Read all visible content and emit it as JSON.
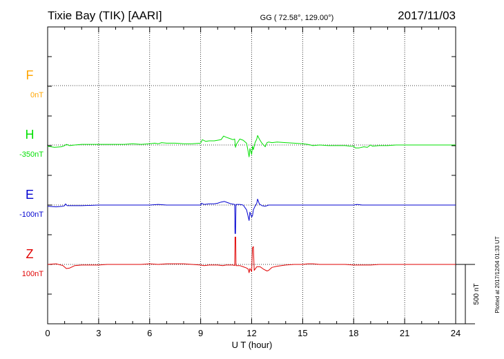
{
  "header": {
    "station": "Tixie Bay (TIK)  [AARI]",
    "coords": "GG ( 72.58°, 129.00°)",
    "date": "2017/11/03"
  },
  "plotted_note": "Plotted at 2017/12/04 01:33 UT",
  "chart_data": {
    "type": "line",
    "xlabel": "U T (hour)",
    "xlim": [
      0,
      24
    ],
    "xticks": [
      "0",
      "3",
      "6",
      "9",
      "12",
      "15",
      "18",
      "21",
      "24"
    ],
    "scale_bar_label": "500 nT",
    "series": [
      {
        "name": "F",
        "baseline": "0nT",
        "color": "#ffa500",
        "points": []
      },
      {
        "name": "H",
        "baseline": "-350nT",
        "color": "#00e000",
        "points": [
          [
            0,
            -10
          ],
          [
            0.4,
            -20
          ],
          [
            0.8,
            -15
          ],
          [
            1.0,
            -5
          ],
          [
            1.1,
            5
          ],
          [
            1.3,
            -5
          ],
          [
            1.6,
            0
          ],
          [
            2.0,
            5
          ],
          [
            2.5,
            5
          ],
          [
            3.0,
            5
          ],
          [
            3.5,
            5
          ],
          [
            4.0,
            5
          ],
          [
            4.5,
            5
          ],
          [
            5.0,
            10
          ],
          [
            5.5,
            5
          ],
          [
            6.0,
            10
          ],
          [
            6.3,
            15
          ],
          [
            6.5,
            10
          ],
          [
            6.7,
            20
          ],
          [
            7.0,
            15
          ],
          [
            7.5,
            15
          ],
          [
            8.0,
            10
          ],
          [
            8.5,
            10
          ],
          [
            9.0,
            15
          ],
          [
            9.1,
            45
          ],
          [
            9.3,
            30
          ],
          [
            9.5,
            35
          ],
          [
            9.8,
            35
          ],
          [
            10.0,
            40
          ],
          [
            10.2,
            45
          ],
          [
            10.35,
            75
          ],
          [
            10.5,
            65
          ],
          [
            10.7,
            55
          ],
          [
            10.9,
            45
          ],
          [
            11.0,
            50
          ],
          [
            11.05,
            -20
          ],
          [
            11.1,
            5
          ],
          [
            11.3,
            50
          ],
          [
            11.5,
            40
          ],
          [
            11.7,
            15
          ],
          [
            11.8,
            -60
          ],
          [
            11.85,
            -100
          ],
          [
            11.9,
            -30
          ],
          [
            12.0,
            -80
          ],
          [
            12.05,
            -10
          ],
          [
            12.1,
            -40
          ],
          [
            12.2,
            20
          ],
          [
            12.3,
            50
          ],
          [
            12.35,
            80
          ],
          [
            12.45,
            50
          ],
          [
            12.6,
            15
          ],
          [
            12.8,
            -15
          ],
          [
            12.9,
            20
          ],
          [
            13.0,
            25
          ],
          [
            13.2,
            20
          ],
          [
            13.5,
            25
          ],
          [
            14.0,
            20
          ],
          [
            14.5,
            15
          ],
          [
            15.0,
            10
          ],
          [
            15.3,
            5
          ],
          [
            15.6,
            -5
          ],
          [
            16.0,
            0
          ],
          [
            16.5,
            -5
          ],
          [
            17.0,
            -5
          ],
          [
            17.5,
            -5
          ],
          [
            17.8,
            -10
          ],
          [
            18.0,
            -10
          ],
          [
            18.1,
            -25
          ],
          [
            18.3,
            -25
          ],
          [
            18.6,
            -15
          ],
          [
            18.8,
            -20
          ],
          [
            19.0,
            0
          ],
          [
            19.1,
            -10
          ],
          [
            19.5,
            -5
          ],
          [
            20.0,
            -5
          ],
          [
            20.5,
            0
          ],
          [
            21.0,
            0
          ],
          [
            21.5,
            0
          ],
          [
            22.0,
            0
          ],
          [
            22.5,
            0
          ],
          [
            23.0,
            0
          ],
          [
            23.5,
            0
          ],
          [
            24.0,
            0
          ]
        ]
      },
      {
        "name": "E",
        "baseline": "-100nT",
        "color": "#0000d0",
        "points": [
          [
            0,
            -10
          ],
          [
            0.5,
            -15
          ],
          [
            0.9,
            -10
          ],
          [
            1.0,
            -5
          ],
          [
            1.05,
            10
          ],
          [
            1.15,
            -5
          ],
          [
            1.5,
            -5
          ],
          [
            2.0,
            -5
          ],
          [
            3.0,
            0
          ],
          [
            4.0,
            0
          ],
          [
            5.0,
            0
          ],
          [
            6.0,
            0
          ],
          [
            6.5,
            5
          ],
          [
            7.0,
            0
          ],
          [
            7.5,
            0
          ],
          [
            8.0,
            0
          ],
          [
            8.5,
            0
          ],
          [
            9.0,
            0
          ],
          [
            9.05,
            15
          ],
          [
            9.2,
            5
          ],
          [
            9.5,
            10
          ],
          [
            9.8,
            10
          ],
          [
            10.0,
            15
          ],
          [
            10.2,
            25
          ],
          [
            10.4,
            30
          ],
          [
            10.6,
            20
          ],
          [
            10.8,
            10
          ],
          [
            11.0,
            5
          ],
          [
            11.02,
            -240
          ],
          [
            11.05,
            -240
          ],
          [
            11.08,
            5
          ],
          [
            11.3,
            5
          ],
          [
            11.5,
            0
          ],
          [
            11.7,
            -40
          ],
          [
            11.8,
            -100
          ],
          [
            11.85,
            -130
          ],
          [
            11.9,
            -60
          ],
          [
            12.0,
            -100
          ],
          [
            12.05,
            -90
          ],
          [
            12.1,
            -40
          ],
          [
            12.2,
            -10
          ],
          [
            12.3,
            15
          ],
          [
            12.35,
            50
          ],
          [
            12.45,
            10
          ],
          [
            12.6,
            -5
          ],
          [
            12.8,
            -10
          ],
          [
            12.9,
            -5
          ],
          [
            13.0,
            0
          ],
          [
            13.5,
            0
          ],
          [
            14.0,
            0
          ],
          [
            14.5,
            0
          ],
          [
            15.0,
            0
          ],
          [
            16.0,
            0
          ],
          [
            17.0,
            0
          ],
          [
            18.0,
            0
          ],
          [
            18.2,
            5
          ],
          [
            18.5,
            0
          ],
          [
            19.0,
            0
          ],
          [
            20.0,
            0
          ],
          [
            21.0,
            0
          ],
          [
            22.0,
            0
          ],
          [
            23.0,
            0
          ],
          [
            24.0,
            0
          ]
        ]
      },
      {
        "name": "Z",
        "baseline": "100nT",
        "color": "#e00000",
        "points": [
          [
            0,
            0
          ],
          [
            0.5,
            5
          ],
          [
            0.9,
            -10
          ],
          [
            1.1,
            -35
          ],
          [
            1.3,
            -30
          ],
          [
            1.6,
            -10
          ],
          [
            2.0,
            -5
          ],
          [
            2.5,
            -5
          ],
          [
            3.0,
            -5
          ],
          [
            3.5,
            0
          ],
          [
            4.0,
            0
          ],
          [
            4.5,
            0
          ],
          [
            5.0,
            0
          ],
          [
            5.5,
            0
          ],
          [
            6.0,
            5
          ],
          [
            6.5,
            0
          ],
          [
            7.0,
            5
          ],
          [
            7.5,
            5
          ],
          [
            8.0,
            5
          ],
          [
            8.5,
            0
          ],
          [
            9.0,
            -5
          ],
          [
            9.2,
            -10
          ],
          [
            9.5,
            -5
          ],
          [
            9.8,
            -5
          ],
          [
            10.0,
            -5
          ],
          [
            10.3,
            -10
          ],
          [
            10.5,
            -5
          ],
          [
            10.7,
            -5
          ],
          [
            10.9,
            -5
          ],
          [
            11.0,
            -10
          ],
          [
            11.02,
            230
          ],
          [
            11.06,
            230
          ],
          [
            11.08,
            -10
          ],
          [
            11.3,
            -10
          ],
          [
            11.5,
            -20
          ],
          [
            11.7,
            -30
          ],
          [
            11.8,
            -40
          ],
          [
            11.85,
            -70
          ],
          [
            11.9,
            -35
          ],
          [
            12.0,
            -60
          ],
          [
            12.05,
            140
          ],
          [
            12.1,
            150
          ],
          [
            12.15,
            -50
          ],
          [
            12.2,
            -40
          ],
          [
            12.3,
            -20
          ],
          [
            12.5,
            -20
          ],
          [
            12.7,
            -40
          ],
          [
            12.9,
            -55
          ],
          [
            13.0,
            -50
          ],
          [
            13.2,
            -25
          ],
          [
            13.5,
            -15
          ],
          [
            14.0,
            -5
          ],
          [
            14.5,
            0
          ],
          [
            15.0,
            0
          ],
          [
            15.3,
            5
          ],
          [
            15.6,
            5
          ],
          [
            16.0,
            0
          ],
          [
            16.5,
            0
          ],
          [
            17.0,
            0
          ],
          [
            17.5,
            0
          ],
          [
            18.0,
            -5
          ],
          [
            18.5,
            -5
          ],
          [
            19.0,
            -5
          ],
          [
            19.5,
            0
          ],
          [
            20.0,
            0
          ],
          [
            21.0,
            0
          ],
          [
            22.0,
            0
          ],
          [
            23.0,
            0
          ],
          [
            24.0,
            0
          ]
        ]
      }
    ]
  }
}
